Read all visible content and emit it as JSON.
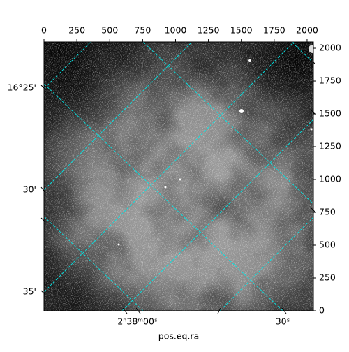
{
  "chart_data": {
    "type": "image",
    "xlabel": "pos.eq.ra",
    "xlim": [
      0,
      2048
    ],
    "xticks": [
      0,
      250,
      500,
      750,
      1000,
      1250,
      1500,
      1750,
      2000
    ],
    "ylim": [
      0,
      2048
    ],
    "yticks": [
      0,
      250,
      500,
      750,
      1000,
      1250,
      1500,
      1750,
      2000
    ],
    "dec_tick_labels": [
      "16°25'",
      "30'",
      "35'"
    ],
    "ra_tick_labels": [
      "2ʰ38ᵐ00ˢ",
      "30ˢ"
    ],
    "grid_color": "#00e5e5"
  }
}
